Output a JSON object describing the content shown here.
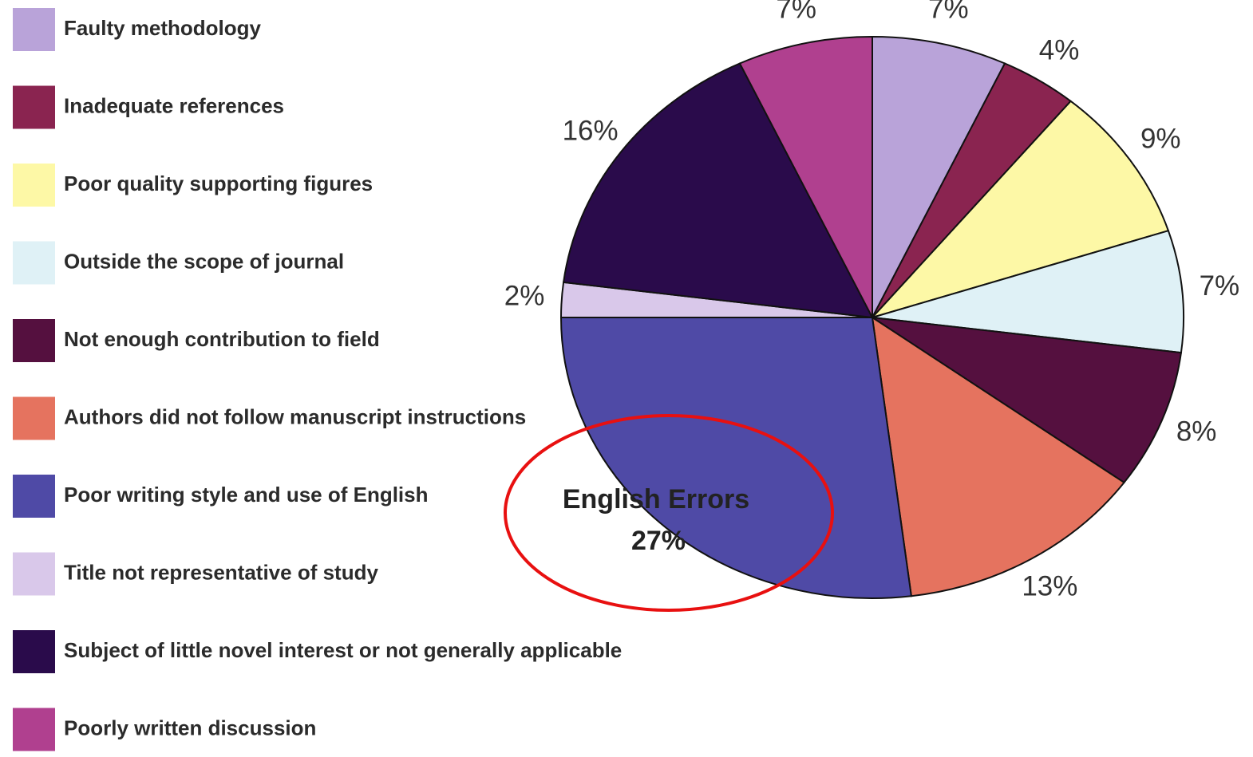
{
  "chart_data": {
    "type": "pie",
    "categories": [
      "Faulty methodology",
      "Inadequate references",
      "Poor quality supporting figures",
      "Outside the scope of journal",
      "Not enough contribution to field",
      "Authors did not follow manuscript instructions",
      "Poor writing style and use of English",
      "Title not representative of study",
      "Subject of little novel interest or not generally applicable",
      "Poorly written discussion"
    ],
    "values": [
      7,
      4,
      9,
      7,
      8,
      13,
      27,
      2,
      16,
      7
    ],
    "value_labels": [
      "7%",
      "4%",
      "9%",
      "7%",
      "8%",
      "13%",
      "27%",
      "2%",
      "16%",
      "7%"
    ],
    "colors": [
      "#b9a3d9",
      "#8a2450",
      "#fdf8a6",
      "#dff1f6",
      "#55103f",
      "#e5735f",
      "#4f4aa6",
      "#d9c8ea",
      "#2a0b4b",
      "#b0408f"
    ],
    "annotation": "English Errors",
    "legend": "left"
  }
}
